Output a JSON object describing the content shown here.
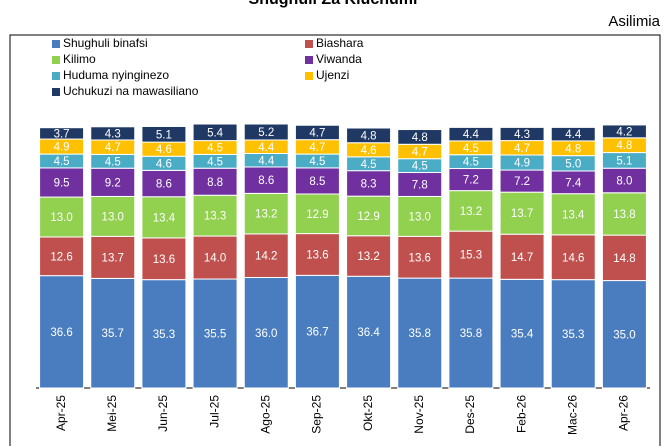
{
  "chart_data": {
    "type": "stacked_bar",
    "title": "Shughuli Za Kiuchumi",
    "subtitle": "Asilimia",
    "categories": [
      "Apr-25",
      "Mei-25",
      "Jun-25",
      "Jul-25",
      "Ago-25",
      "Sep-25",
      "Okt-25",
      "Nov-25",
      "Des-25",
      "Feb-26",
      "Mac-26",
      "Apr-26"
    ],
    "ylim": [
      0,
      115
    ],
    "series": [
      {
        "name": "Shughuli binafsi",
        "color": "#4a7dc0",
        "values": [
          36.6,
          35.7,
          35.3,
          35.5,
          36.0,
          36.7,
          36.4,
          35.8,
          35.8,
          35.4,
          35.3,
          35.0
        ],
        "value_labels": [
          "36.6",
          "35.7",
          "35.3",
          "35.5",
          "36.0",
          "36.7",
          "36.4",
          "35.8",
          "35.8",
          "35.4",
          "35.3",
          "35.0"
        ]
      },
      {
        "name": "Biashara",
        "color": "#c0504d",
        "values": [
          12.6,
          13.7,
          13.6,
          14.0,
          14.2,
          13.6,
          13.2,
          13.6,
          15.3,
          14.7,
          14.6,
          14.8
        ],
        "value_labels": [
          "12.6",
          "13.7",
          "13.6",
          "14.0",
          "14.2",
          "13.6",
          "13.2",
          "13.6",
          "15.3",
          "14.7",
          "14.6",
          "14.8"
        ]
      },
      {
        "name": "Kilimo",
        "color": "#92d050",
        "values": [
          13.0,
          13.0,
          13.4,
          13.3,
          13.2,
          12.9,
          12.9,
          13.0,
          13.2,
          13.7,
          13.4,
          13.8
        ],
        "value_labels": [
          "13.0",
          "13.0",
          "13.4",
          "13.3",
          "13.2",
          "12.9",
          "12.9",
          "13.0",
          "13.2",
          "13.7",
          "13.4",
          "13.8"
        ]
      },
      {
        "name": "Viwanda",
        "color": "#7030a0",
        "values": [
          9.5,
          9.2,
          8.6,
          8.8,
          8.6,
          8.5,
          8.3,
          7.8,
          7.2,
          7.2,
          7.4,
          8.0
        ],
        "value_labels": [
          "9.5",
          "9.2",
          "8.6",
          "8.8",
          "8.6",
          "8.5",
          "8.3",
          "7.8",
          "7.2",
          "7.2",
          "7.4",
          "8.0"
        ]
      },
      {
        "name": "Huduma nyinginezo",
        "color": "#4bacc6",
        "values": [
          4.5,
          4.5,
          4.6,
          4.5,
          4.4,
          4.5,
          4.5,
          4.5,
          4.5,
          4.9,
          5.0,
          5.1
        ],
        "value_labels": [
          "4.5",
          "4.5",
          "4.6",
          "4.5",
          "4.4",
          "4.5",
          "4.5",
          "4.5",
          "4.5",
          "4.9",
          "5.0",
          "5.1"
        ]
      },
      {
        "name": "Ujenzi",
        "color": "#ffc000",
        "values": [
          4.9,
          4.7,
          4.6,
          4.5,
          4.4,
          4.7,
          4.6,
          4.7,
          4.5,
          4.7,
          4.8,
          4.8
        ],
        "value_labels": [
          "4.9",
          "4.7",
          "4.6",
          "4.5",
          "4.4",
          "4.7",
          "4.6",
          "4.7",
          "4.5",
          "4.7",
          "4.8",
          "4.8"
        ]
      },
      {
        "name": "Uchukuzi na mawasiliano",
        "color": "#1f3864",
        "values": [
          3.7,
          4.3,
          5.1,
          5.4,
          5.2,
          4.7,
          4.8,
          4.8,
          4.4,
          4.3,
          4.4,
          4.2
        ],
        "value_labels": [
          "3.7",
          "4.3",
          "5.1",
          "5.4",
          "5.2",
          "4.7",
          "4.8",
          "4.8",
          "4.4",
          "4.3",
          "4.4",
          "4.2"
        ]
      }
    ]
  }
}
